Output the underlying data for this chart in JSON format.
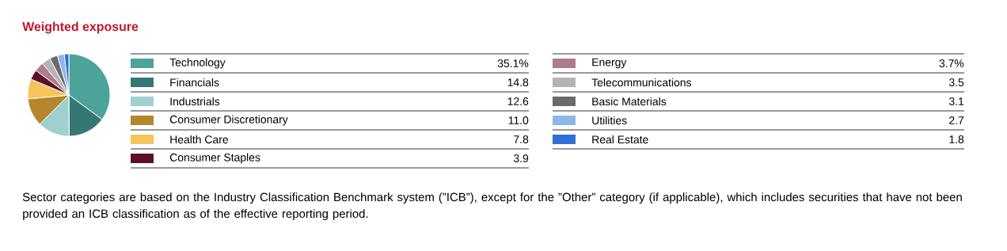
{
  "chart_data": {
    "type": "pie",
    "title": "Weighted exposure",
    "categories": [
      "Technology",
      "Financials",
      "Industrials",
      "Consumer Discretionary",
      "Health Care",
      "Consumer Staples",
      "Energy",
      "Telecommunications",
      "Basic Materials",
      "Utilities",
      "Real Estate"
    ],
    "values": [
      35.1,
      14.8,
      12.6,
      11.0,
      7.8,
      3.9,
      3.7,
      3.5,
      3.1,
      2.7,
      1.8
    ],
    "colors": [
      "#4ca39a",
      "#357873",
      "#9fd0cf",
      "#b5862c",
      "#f5c45a",
      "#5e0f2a",
      "#ae7d8c",
      "#b4b4b4",
      "#6b6b6b",
      "#8db6ea",
      "#2f6fd6"
    ],
    "value_labels": [
      "35.1%",
      "14.8",
      "12.6",
      "11.0",
      "7.8",
      "3.9",
      "3.7%",
      "3.5",
      "3.1",
      "2.7",
      "1.8"
    ],
    "legend": "right",
    "annotations": [
      "Sector categories are based on the Industry Classification Benchmark system (”ICB”), except for the ”Other” category (if applicable), which includes securities that have not been provided an ICB classification as of the effective reporting period."
    ]
  }
}
